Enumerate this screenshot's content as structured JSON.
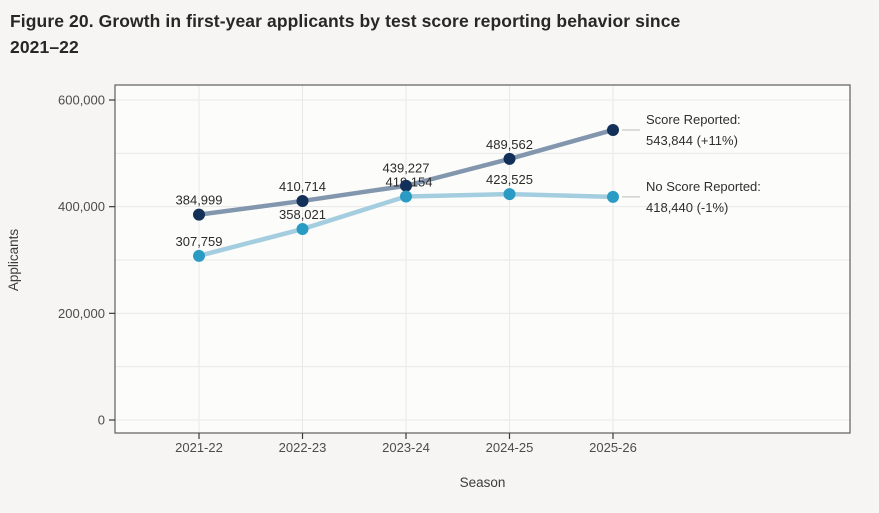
{
  "page": {
    "title_line1": "Figure 20. Growth in first-year applicants by test score reporting behavior since",
    "title_line2": "2021–22"
  },
  "chart_data": {
    "type": "line",
    "title": "Figure 20. Growth in first-year applicants by test score reporting behavior since 2021–22",
    "xlabel": "Season",
    "ylabel": "Applicants",
    "categories": [
      "2021-22",
      "2022-23",
      "2023-24",
      "2024-25",
      "2025-26"
    ],
    "y_ticks": [
      0,
      200000,
      400000,
      600000
    ],
    "y_grid_step": 100000,
    "ylim": [
      0,
      600000
    ],
    "grid": true,
    "legend_position": "right-annotations",
    "series": [
      {
        "name": "Score Reported",
        "values": [
          384999,
          410714,
          439227,
          489562,
          543844
        ],
        "point_labels": [
          "384,999",
          "410,714",
          "439,227",
          "489,562",
          null
        ],
        "annotation_line1": "Score Reported:",
        "annotation_line2": "543,844 (+11%)",
        "change": "+11%",
        "line_color": "#8297ae",
        "point_color": "#133158",
        "label_dy": [
          -10,
          -10,
          -13,
          -10,
          null
        ],
        "label_dx": [
          0,
          0,
          0,
          0,
          0
        ]
      },
      {
        "name": "No Score Reported",
        "values": [
          307759,
          358021,
          419154,
          423525,
          418440
        ],
        "point_labels": [
          "307,759",
          "358,021",
          "419,154",
          "423,525",
          null
        ],
        "annotation_line1": "No Score Reported:",
        "annotation_line2": "418,440 (-1%)",
        "change": "-1%",
        "line_color": "#a4cedf",
        "point_color": "#2a9cc4",
        "label_dy": [
          -10,
          -10,
          -10,
          -10,
          null
        ],
        "label_dx": [
          0,
          0,
          3,
          0,
          0
        ]
      }
    ],
    "colors": {
      "page_bg": "#f6f5f3",
      "plot_bg": "#fcfcfb",
      "gridline": "#e9e9e9",
      "plot_border": "#5e5e5e",
      "tick_mark": "#3a3a3a",
      "tick_label": "#4c4c4c",
      "axis_title": "#3c3c3c",
      "data_label": "#2b2b2b",
      "annotation_text": "#2f2f2f",
      "leader_line": "#bdbdbd"
    }
  }
}
